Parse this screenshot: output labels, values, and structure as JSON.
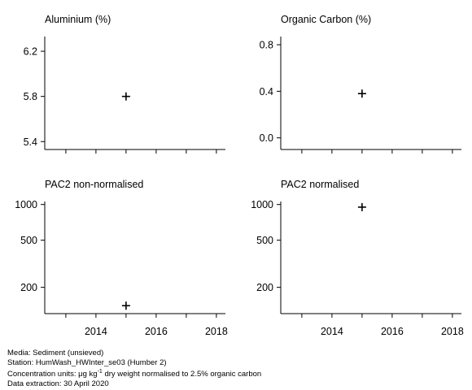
{
  "chart_data": [
    {
      "type": "scatter",
      "title": "Aluminium (%)",
      "xlim": [
        2012.3,
        2018.3
      ],
      "ylim": [
        5.33,
        6.33
      ],
      "yticks": [
        5.4,
        5.8,
        6.2
      ],
      "ytick_labels": [
        "5.4",
        "5.8",
        "6.2"
      ],
      "xticks": [
        2013,
        2014,
        2015,
        2016,
        2017,
        2018
      ],
      "xtick_labels": [],
      "points": [
        {
          "x": 2015,
          "y": 5.8
        }
      ]
    },
    {
      "type": "scatter",
      "title": "Organic Carbon (%)",
      "xlim": [
        2012.3,
        2018.3
      ],
      "ylim": [
        -0.1,
        0.87
      ],
      "yticks": [
        0.0,
        0.4,
        0.8
      ],
      "ytick_labels": [
        "0.0",
        "0.4",
        "0.8"
      ],
      "xticks": [
        2013,
        2014,
        2015,
        2016,
        2017,
        2018
      ],
      "xtick_labels": [],
      "points": [
        {
          "x": 2015,
          "y": 0.38
        }
      ]
    },
    {
      "type": "scatter",
      "title": "PAC2 non-normalised",
      "scale": "log",
      "xlim": [
        2012.3,
        2018.3
      ],
      "ylim": [
        120,
        1060
      ],
      "yticks": [
        200,
        500,
        1000
      ],
      "ytick_labels": [
        "200",
        "500",
        "1000"
      ],
      "xticks": [
        2013,
        2014,
        2015,
        2016,
        2017,
        2018
      ],
      "xtick_labels": [
        "",
        "2014",
        "",
        "2016",
        "",
        "2018"
      ],
      "points": [
        {
          "x": 2015,
          "y": 140
        }
      ]
    },
    {
      "type": "scatter",
      "title": "PAC2 normalised",
      "scale": "log",
      "xlim": [
        2012.3,
        2018.3
      ],
      "ylim": [
        120,
        1060
      ],
      "yticks": [
        200,
        500,
        1000
      ],
      "ytick_labels": [
        "200",
        "500",
        "1000"
      ],
      "xticks": [
        2013,
        2014,
        2015,
        2016,
        2017,
        2018
      ],
      "xtick_labels": [
        "",
        "2014",
        "",
        "2016",
        "",
        "2018"
      ],
      "points": [
        {
          "x": 2015,
          "y": 950
        }
      ]
    }
  ],
  "footer": {
    "media": "Media: Sediment (unsieved)",
    "station": "Station: HumWash_HWInter_se03 (Humber 2)",
    "units_prefix": "Concentration units:  μg kg",
    "units_sup": "-1",
    "units_suffix": " dry weight normalised to 2.5% organic carbon",
    "extraction": "Data extraction: 30 April 2020"
  }
}
